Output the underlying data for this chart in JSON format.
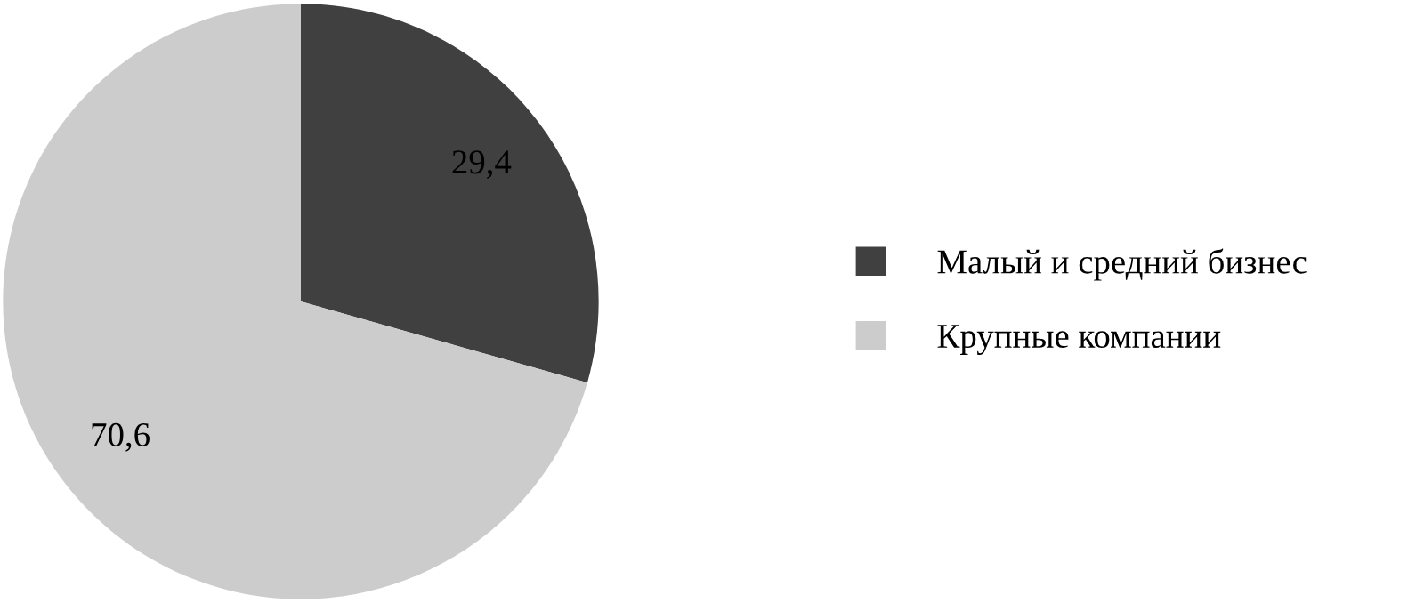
{
  "chart_data": {
    "type": "pie",
    "categories": [
      "Малый и средний бизнес",
      "Крупные компании"
    ],
    "values": [
      29.4,
      70.6
    ],
    "colors": [
      "#404040",
      "#cccccc"
    ],
    "value_labels": [
      "29,4",
      "70,6"
    ],
    "legend": "right"
  }
}
